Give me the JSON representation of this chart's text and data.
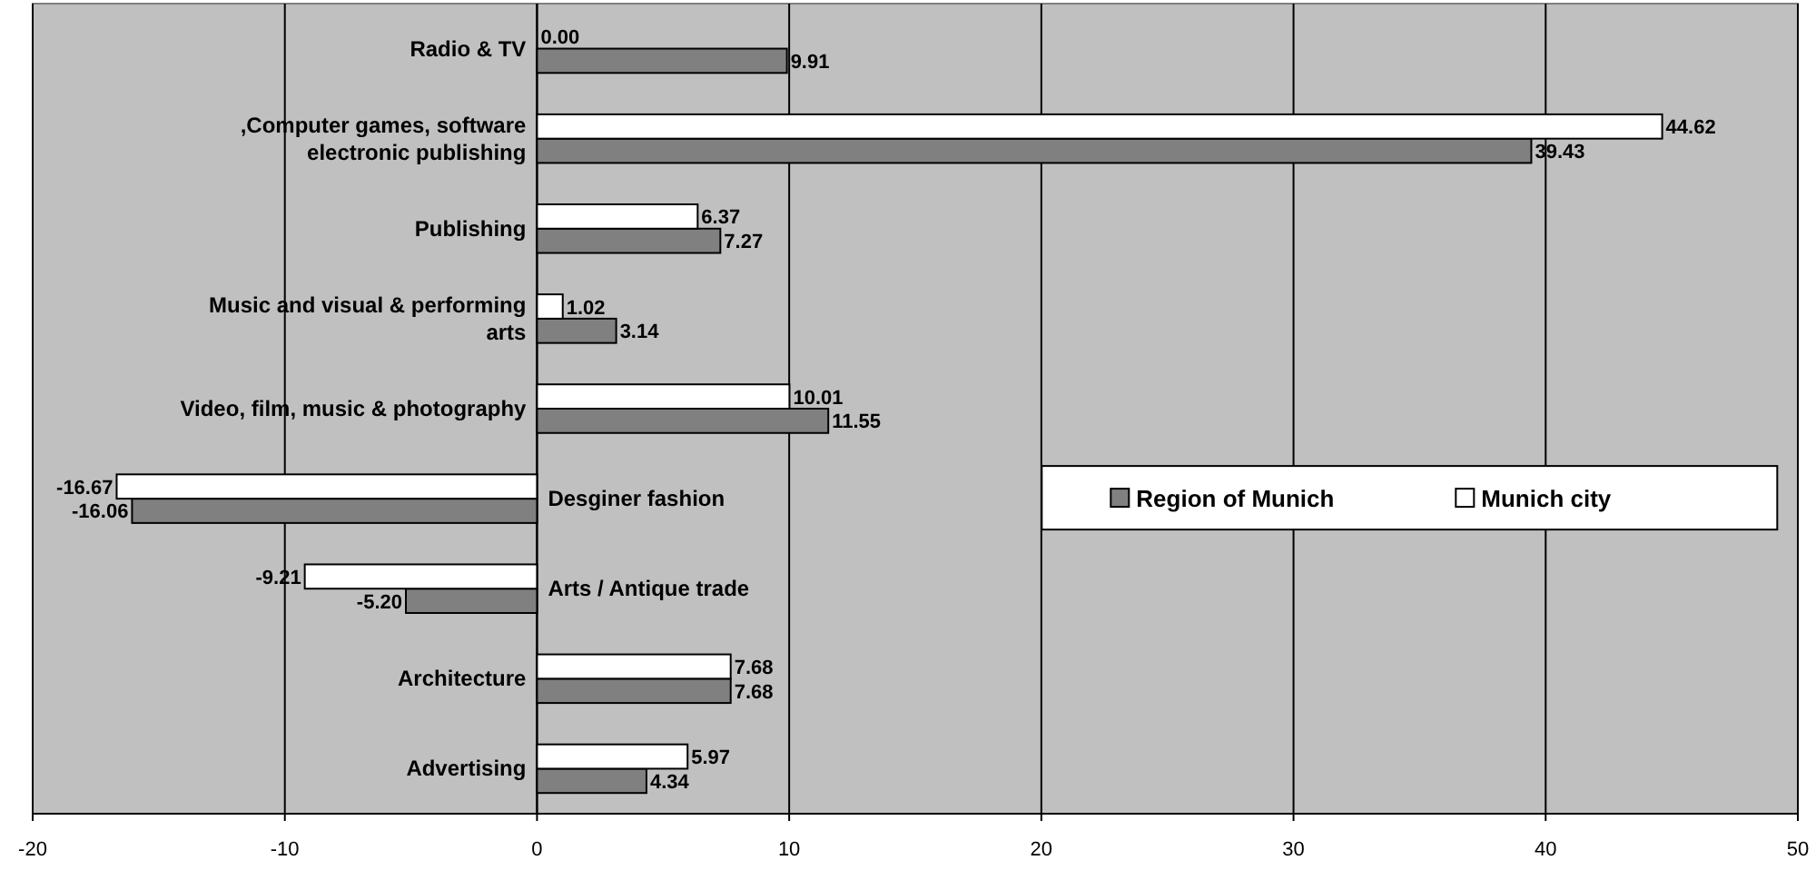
{
  "chart_data": {
    "type": "bar",
    "orientation": "horizontal",
    "categories": [
      "Radio & TV",
      ",Computer games, software electronic publishing",
      "Publishing",
      "Music and visual & performing arts",
      "Video, film, music & photography",
      "Desginer fashion",
      "Arts / Antique trade",
      "Architecture",
      "Advertising"
    ],
    "series": [
      {
        "name": "Region of Munich",
        "color": "#808080",
        "values": [
          9.91,
          39.43,
          7.27,
          3.14,
          11.55,
          -16.06,
          -5.2,
          7.68,
          4.34
        ],
        "value_labels": [
          "9.91",
          "39.43",
          "7.27",
          "3.14",
          "11.55",
          "-16.06",
          "-5.20",
          "7.68",
          "4.34"
        ]
      },
      {
        "name": "Munich city",
        "color": "#ffffff",
        "values": [
          0.0,
          44.62,
          6.37,
          1.02,
          10.01,
          -16.67,
          -9.21,
          7.68,
          5.97
        ],
        "value_labels": [
          "0.00",
          "44.62",
          "6.37",
          "1.02",
          "10.01",
          "-16.67",
          "-9.21",
          "7.68",
          "5.97"
        ]
      }
    ],
    "xlim": [
      -20,
      50
    ],
    "xticks": [
      -20,
      -10,
      0,
      10,
      20,
      30,
      40,
      50
    ],
    "grid": "x",
    "legend": "right"
  }
}
